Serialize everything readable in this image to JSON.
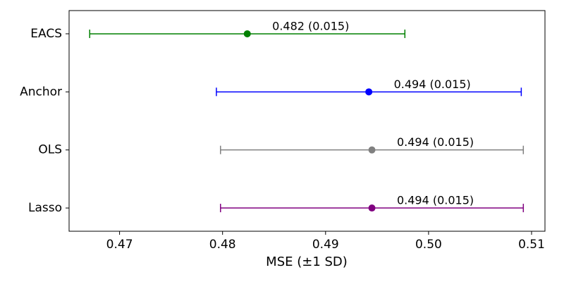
{
  "chart_data": {
    "type": "errorbar",
    "categories": [
      "EACS",
      "Anchor",
      "OLS",
      "Lasso"
    ],
    "values": [
      0.4824,
      0.4942,
      0.4945,
      0.4945
    ],
    "errors": [
      0.0153,
      0.0148,
      0.0147,
      0.0147
    ],
    "value_labels": [
      "0.482 (0.015)",
      "0.494 (0.015)",
      "0.494 (0.015)",
      "0.494 (0.015)"
    ],
    "colors": [
      "#008000",
      "#0000ff",
      "#808080",
      "#800080"
    ],
    "xlim": [
      0.4651,
      0.5113
    ],
    "xticks": [
      0.47,
      0.48,
      0.49,
      {
        "value": 0.5,
        "label": "0.50"
      },
      0.51
    ],
    "xlabel": "MSE (±1 SD)"
  }
}
